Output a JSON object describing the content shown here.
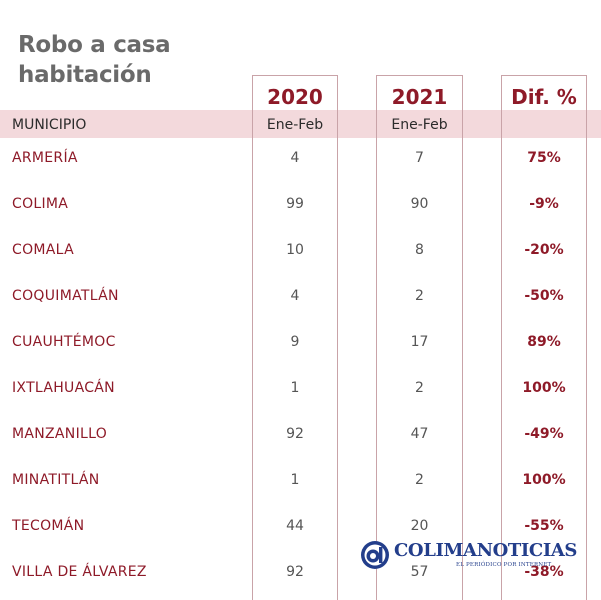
{
  "title_line1": "Robo a casa",
  "title_line2": "habitación",
  "columns": {
    "y2020": "2020",
    "y2021": "2021",
    "dif": "Dif. %"
  },
  "header_row": {
    "municipio": "MUNICIPIO",
    "period_2020": "Ene-Feb",
    "period_2021": "Ene-Feb"
  },
  "rows": [
    {
      "municipio": "ARMERÍA",
      "v2020": "4",
      "v2021": "7",
      "dif": "75%"
    },
    {
      "municipio": "COLIMA",
      "v2020": "99",
      "v2021": "90",
      "dif": "-9%"
    },
    {
      "municipio": "COMALA",
      "v2020": "10",
      "v2021": "8",
      "dif": "-20%"
    },
    {
      "municipio": "COQUIMATLÁN",
      "v2020": "4",
      "v2021": "2",
      "dif": "-50%"
    },
    {
      "municipio": "CUAUHTÉMOC",
      "v2020": "9",
      "v2021": "17",
      "dif": "89%"
    },
    {
      "municipio": "IXTLAHUACÁN",
      "v2020": "1",
      "v2021": "2",
      "dif": "100%"
    },
    {
      "municipio": "MANZANILLO",
      "v2020": "92",
      "v2021": "47",
      "dif": "-49%"
    },
    {
      "municipio": "MINATITLÁN",
      "v2020": "1",
      "v2021": "2",
      "dif": "100%"
    },
    {
      "municipio": "TECOMÁN",
      "v2020": "44",
      "v2021": "20",
      "dif": "-55%"
    },
    {
      "municipio": "VILLA DE ÁLVAREZ",
      "v2020": "92",
      "v2021": "57",
      "dif": "-38%"
    }
  ],
  "logo": {
    "name": "COLIMANOTICIAS",
    "tagline": "EL PERIÓDICO POR INTERNET",
    "icon": "colimanoticias-logo-icon",
    "color": "#233e8b"
  },
  "colors": {
    "accent": "#8e1a28",
    "band": "#f3d9dc",
    "title": "#6a6a6a"
  }
}
